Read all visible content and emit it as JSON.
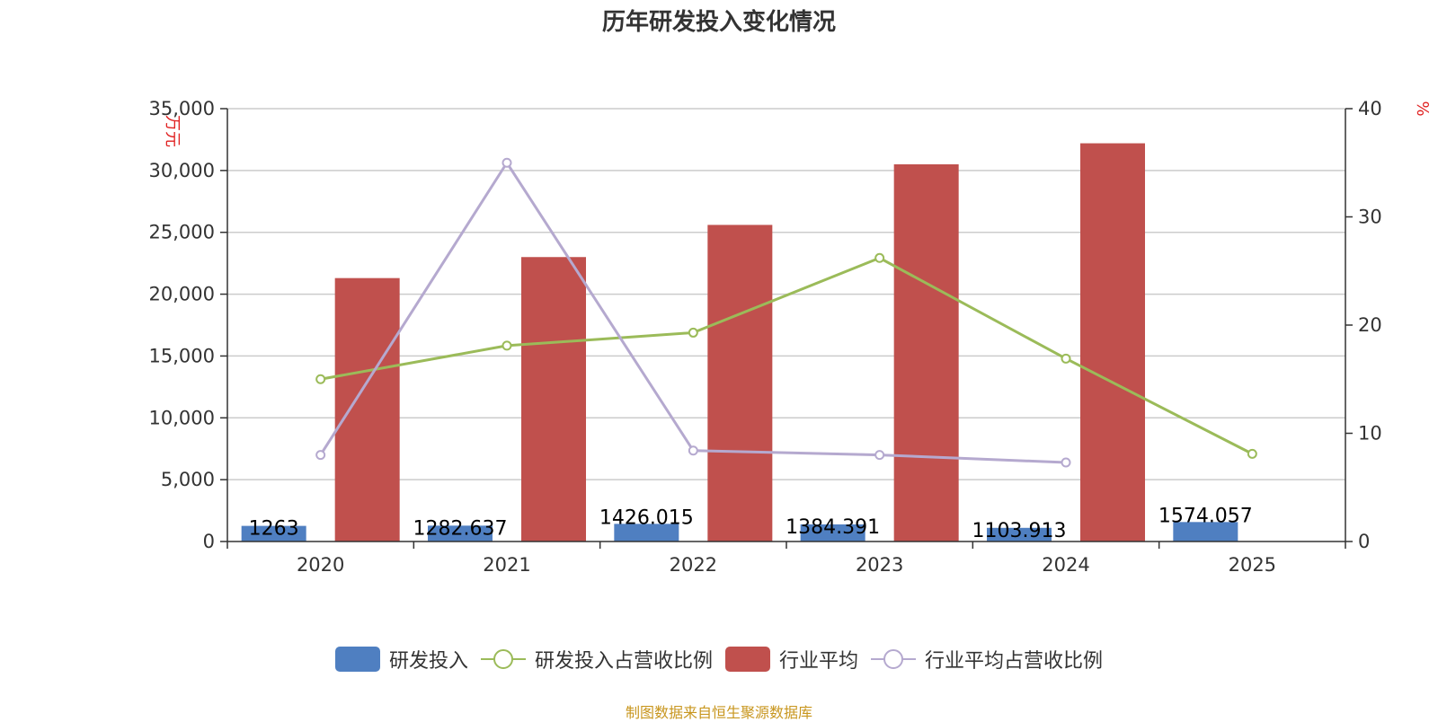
{
  "title": "历年研发投入变化情况",
  "source": "制图数据来自恒生聚源数据库",
  "chart_data": {
    "type": "bar",
    "categories": [
      "2020",
      "2021",
      "2022",
      "2023",
      "2024",
      "2025"
    ],
    "y_left": {
      "unit": "万元",
      "ylim": [
        0,
        35000
      ],
      "ticks": [
        "0",
        "5,000",
        "10,000",
        "15,000",
        "20,000",
        "25,000",
        "30,000",
        "35,000"
      ],
      "tick_values": [
        0,
        5000,
        10000,
        15000,
        20000,
        25000,
        30000,
        35000
      ]
    },
    "y_right": {
      "unit": "%",
      "ylim": [
        0,
        40
      ],
      "ticks": [
        "0",
        "10",
        "20",
        "30",
        "40"
      ],
      "tick_values": [
        0,
        10,
        20,
        30,
        40
      ]
    },
    "grid": true,
    "legend_position": "bottom",
    "series": [
      {
        "name": "研发投入",
        "type": "bar",
        "axis": "left",
        "color": "#4f7fc1",
        "values": [
          1263,
          1282.637,
          1426.015,
          1384.391,
          1103.913,
          1574.057
        ],
        "labels": [
          "1263",
          "1282.637",
          "1426.015",
          "1384.391",
          "1103.913",
          "1574.057"
        ]
      },
      {
        "name": "研发投入占营收比例",
        "type": "line",
        "axis": "right",
        "color": "#9bbb59",
        "values": [
          15.0,
          18.1,
          19.3,
          26.2,
          16.9,
          8.1
        ]
      },
      {
        "name": "行业平均",
        "type": "bar",
        "axis": "left",
        "color": "#c0504d",
        "values": [
          21300,
          23000,
          25600,
          30500,
          32200,
          null
        ]
      },
      {
        "name": "行业平均占营收比例",
        "type": "line",
        "axis": "right",
        "color": "#b5a9cf",
        "values": [
          8.0,
          35.0,
          8.4,
          8.0,
          7.3,
          null
        ]
      }
    ]
  }
}
